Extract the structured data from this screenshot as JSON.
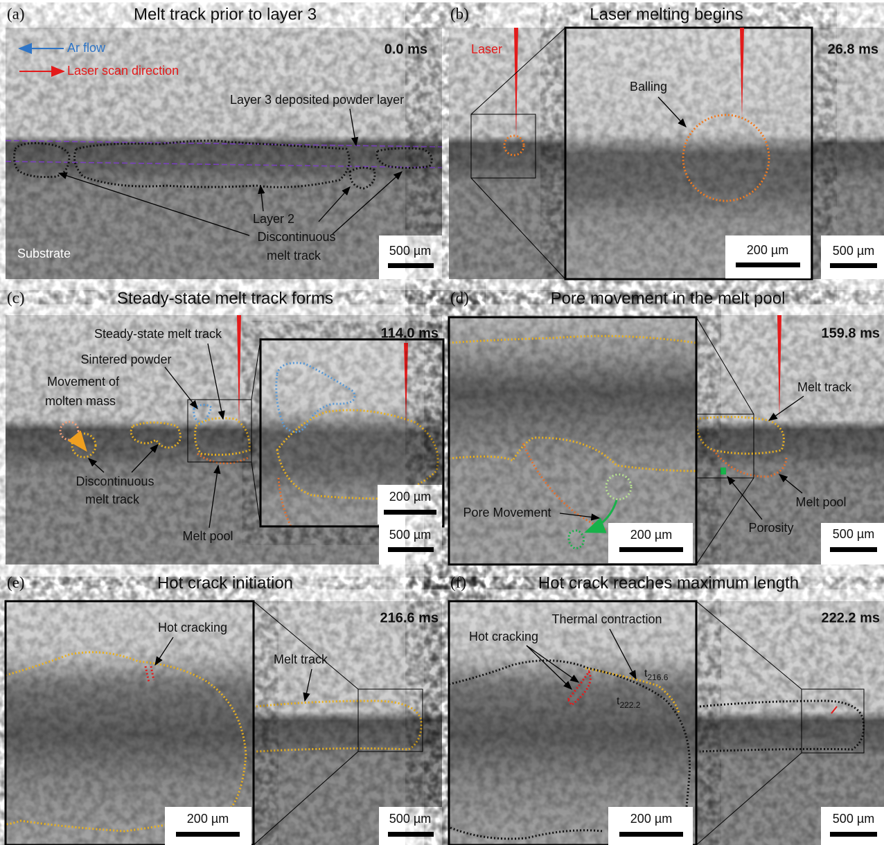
{
  "panels": [
    {
      "label": "(a)",
      "title": "Melt track prior to layer 3",
      "time": "0.0 ms",
      "scale_bar": "500 µm",
      "annotations": [
        "Ar flow",
        "Laser scan direction",
        "Layer 3 deposited powder layer",
        "Layer 2",
        "Discontinuous",
        "melt track",
        "Substrate"
      ]
    },
    {
      "label": "(b)",
      "title": "Laser melting begins",
      "time": "26.8 ms",
      "scale_bar": "500 µm",
      "inset_scale_bar": "200 µm",
      "annotations": [
        "Laser",
        "Balling"
      ]
    },
    {
      "label": "(c)",
      "title": "Steady-state melt track forms",
      "time": "114.0 ms",
      "scale_bar": "500 µm",
      "inset_scale_bar": "200 µm",
      "annotations": [
        "Steady-state melt track",
        "Sintered powder",
        "Movement of",
        "molten mass",
        "Discontinuous",
        "melt track",
        "Melt pool"
      ]
    },
    {
      "label": "(d)",
      "title": "Pore movement in the melt pool",
      "time": "159.8 ms",
      "scale_bar": "500 µm",
      "inset_scale_bar": "200 µm",
      "annotations": [
        "Melt track",
        "Melt pool",
        "Porosity",
        "Pore Movement"
      ]
    },
    {
      "label": "(e)",
      "title": "Hot crack initiation",
      "time": "216.6 ms",
      "scale_bar": "500 µm",
      "inset_scale_bar": "200 µm",
      "annotations": [
        "Hot cracking",
        "Melt track"
      ]
    },
    {
      "label": "(f)",
      "title": "Hot crack reaches maximum length",
      "time": "222.2 ms",
      "scale_bar": "500 µm",
      "inset_scale_bar": "200 µm",
      "annotations": [
        "Thermal contraction",
        "Hot cracking"
      ],
      "time_markers": [
        {
          "symbol": "t",
          "subscript": "216.6"
        },
        {
          "symbol": "t",
          "subscript": "222.2"
        }
      ]
    }
  ]
}
